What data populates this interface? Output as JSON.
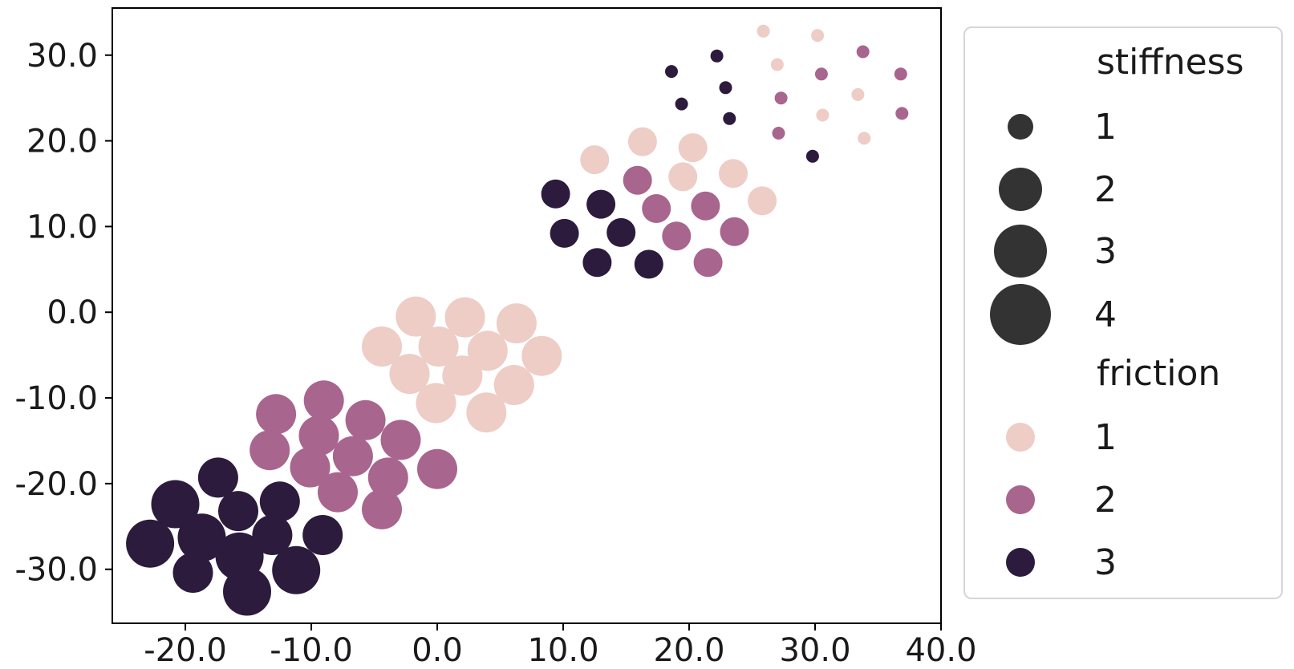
{
  "chart_data": {
    "type": "scatter",
    "title": "",
    "xlabel": "",
    "ylabel": "",
    "xlim": [
      -25.8,
      40
    ],
    "ylim": [
      -36.3,
      35.5
    ],
    "x_ticks": [
      -20,
      -10,
      0,
      10,
      20,
      30,
      40
    ],
    "x_tick_labels": [
      "-20.0",
      "-10.0",
      "0.0",
      "10.0",
      "20.0",
      "30.0",
      "40.0"
    ],
    "y_ticks": [
      30,
      20,
      10,
      0,
      -10,
      -20,
      -30
    ],
    "y_tick_labels": [
      "30.0",
      "20.0",
      "10.0",
      "0.0",
      "-10.0",
      "-20.0",
      "-30.0"
    ],
    "grid": false,
    "legend_position": "outside right",
    "encodings": {
      "size_title": "stiffness",
      "color_title": "friction"
    },
    "size_legend": [
      {
        "label": "1",
        "stiffness": 1
      },
      {
        "label": "2",
        "stiffness": 2
      },
      {
        "label": "3",
        "stiffness": 3
      },
      {
        "label": "4",
        "stiffness": 4
      }
    ],
    "color_legend": [
      {
        "label": "1",
        "friction": 1,
        "color": "#edcdc5"
      },
      {
        "label": "2",
        "friction": 2,
        "color": "#a8658e"
      },
      {
        "label": "3",
        "friction": 3,
        "color": "#2c1b3c"
      }
    ],
    "legend_marker_color": "#333333",
    "points": [
      {
        "x": 25.9,
        "y": 32.8,
        "stiffness": 1,
        "friction": 1
      },
      {
        "x": 30.2,
        "y": 32.3,
        "stiffness": 1,
        "friction": 1
      },
      {
        "x": 33.8,
        "y": 30.4,
        "stiffness": 1,
        "friction": 2
      },
      {
        "x": 22.2,
        "y": 29.9,
        "stiffness": 1,
        "friction": 3
      },
      {
        "x": 27.0,
        "y": 28.9,
        "stiffness": 1,
        "friction": 1
      },
      {
        "x": 18.6,
        "y": 28.1,
        "stiffness": 1,
        "friction": 3
      },
      {
        "x": 30.5,
        "y": 27.8,
        "stiffness": 1,
        "friction": 2
      },
      {
        "x": 36.8,
        "y": 27.8,
        "stiffness": 1,
        "friction": 2
      },
      {
        "x": 22.9,
        "y": 26.2,
        "stiffness": 1,
        "friction": 3
      },
      {
        "x": 33.4,
        "y": 25.4,
        "stiffness": 1,
        "friction": 1
      },
      {
        "x": 27.3,
        "y": 25.0,
        "stiffness": 1,
        "friction": 2
      },
      {
        "x": 19.4,
        "y": 24.3,
        "stiffness": 1,
        "friction": 3
      },
      {
        "x": 36.9,
        "y": 23.2,
        "stiffness": 1,
        "friction": 2
      },
      {
        "x": 30.6,
        "y": 23.0,
        "stiffness": 1,
        "friction": 1
      },
      {
        "x": 23.2,
        "y": 22.6,
        "stiffness": 1,
        "friction": 3
      },
      {
        "x": 27.1,
        "y": 20.9,
        "stiffness": 1,
        "friction": 2
      },
      {
        "x": 33.9,
        "y": 20.3,
        "stiffness": 1,
        "friction": 1
      },
      {
        "x": 29.8,
        "y": 18.2,
        "stiffness": 1,
        "friction": 3
      },
      {
        "x": 16.3,
        "y": 19.9,
        "stiffness": 2,
        "friction": 1
      },
      {
        "x": 20.3,
        "y": 19.2,
        "stiffness": 2,
        "friction": 1
      },
      {
        "x": 12.5,
        "y": 17.8,
        "stiffness": 2,
        "friction": 1
      },
      {
        "x": 23.5,
        "y": 16.2,
        "stiffness": 2,
        "friction": 1
      },
      {
        "x": 19.5,
        "y": 15.8,
        "stiffness": 2,
        "friction": 1
      },
      {
        "x": 15.9,
        "y": 15.4,
        "stiffness": 2,
        "friction": 2
      },
      {
        "x": 9.4,
        "y": 13.8,
        "stiffness": 2,
        "friction": 3
      },
      {
        "x": 25.8,
        "y": 13.0,
        "stiffness": 2,
        "friction": 1
      },
      {
        "x": 13.0,
        "y": 12.6,
        "stiffness": 2,
        "friction": 3
      },
      {
        "x": 21.3,
        "y": 12.4,
        "stiffness": 2,
        "friction": 2
      },
      {
        "x": 17.4,
        "y": 12.1,
        "stiffness": 2,
        "friction": 2
      },
      {
        "x": 10.1,
        "y": 9.2,
        "stiffness": 2,
        "friction": 3
      },
      {
        "x": 14.6,
        "y": 9.3,
        "stiffness": 2,
        "friction": 3
      },
      {
        "x": 23.6,
        "y": 9.4,
        "stiffness": 2,
        "friction": 2
      },
      {
        "x": 19.0,
        "y": 8.9,
        "stiffness": 2,
        "friction": 2
      },
      {
        "x": 12.7,
        "y": 5.8,
        "stiffness": 2,
        "friction": 3
      },
      {
        "x": 16.8,
        "y": 5.6,
        "stiffness": 2,
        "friction": 3
      },
      {
        "x": 21.5,
        "y": 5.8,
        "stiffness": 2,
        "friction": 2
      },
      {
        "x": -1.7,
        "y": -0.5,
        "stiffness": 3,
        "friction": 1
      },
      {
        "x": 2.2,
        "y": -0.6,
        "stiffness": 3,
        "friction": 1
      },
      {
        "x": 6.3,
        "y": -1.3,
        "stiffness": 3,
        "friction": 1
      },
      {
        "x": -4.4,
        "y": -4.0,
        "stiffness": 3,
        "friction": 1
      },
      {
        "x": 0.1,
        "y": -4.0,
        "stiffness": 3,
        "friction": 1
      },
      {
        "x": 4.0,
        "y": -4.5,
        "stiffness": 3,
        "friction": 1
      },
      {
        "x": 8.3,
        "y": -5.1,
        "stiffness": 3,
        "friction": 1
      },
      {
        "x": -2.2,
        "y": -7.2,
        "stiffness": 3,
        "friction": 1
      },
      {
        "x": 2.0,
        "y": -7.4,
        "stiffness": 3,
        "friction": 1
      },
      {
        "x": 6.1,
        "y": -8.5,
        "stiffness": 3,
        "friction": 1
      },
      {
        "x": -0.1,
        "y": -10.6,
        "stiffness": 3,
        "friction": 1
      },
      {
        "x": 3.9,
        "y": -11.7,
        "stiffness": 3,
        "friction": 1
      },
      {
        "x": -9.0,
        "y": -10.3,
        "stiffness": 3,
        "friction": 2
      },
      {
        "x": -12.8,
        "y": -11.9,
        "stiffness": 3,
        "friction": 2
      },
      {
        "x": -5.7,
        "y": -12.6,
        "stiffness": 3,
        "friction": 2
      },
      {
        "x": -9.4,
        "y": -14.4,
        "stiffness": 3,
        "friction": 2
      },
      {
        "x": -2.9,
        "y": -14.9,
        "stiffness": 3,
        "friction": 2
      },
      {
        "x": -13.3,
        "y": -16.1,
        "stiffness": 3,
        "friction": 2
      },
      {
        "x": -6.7,
        "y": -16.8,
        "stiffness": 3,
        "friction": 2
      },
      {
        "x": -10.1,
        "y": -18.1,
        "stiffness": 3,
        "friction": 2
      },
      {
        "x": 0.0,
        "y": -18.3,
        "stiffness": 3,
        "friction": 2
      },
      {
        "x": -3.9,
        "y": -19.3,
        "stiffness": 3,
        "friction": 2
      },
      {
        "x": -7.9,
        "y": -21.0,
        "stiffness": 3,
        "friction": 2
      },
      {
        "x": -4.4,
        "y": -23.0,
        "stiffness": 3,
        "friction": 2
      },
      {
        "x": -17.4,
        "y": -19.3,
        "stiffness": 3,
        "friction": 3
      },
      {
        "x": -20.8,
        "y": -22.4,
        "stiffness": 4,
        "friction": 3
      },
      {
        "x": -15.8,
        "y": -23.2,
        "stiffness": 3,
        "friction": 3
      },
      {
        "x": -12.5,
        "y": -22.1,
        "stiffness": 3,
        "friction": 3
      },
      {
        "x": -18.7,
        "y": -26.3,
        "stiffness": 4,
        "friction": 3
      },
      {
        "x": -13.1,
        "y": -26.0,
        "stiffness": 3,
        "friction": 3
      },
      {
        "x": -9.1,
        "y": -26.0,
        "stiffness": 3,
        "friction": 3
      },
      {
        "x": -22.8,
        "y": -27.0,
        "stiffness": 4,
        "friction": 3
      },
      {
        "x": -15.7,
        "y": -28.5,
        "stiffness": 4,
        "friction": 3
      },
      {
        "x": -19.4,
        "y": -30.4,
        "stiffness": 3,
        "friction": 3
      },
      {
        "x": -11.2,
        "y": -30.1,
        "stiffness": 4,
        "friction": 3
      },
      {
        "x": -15.1,
        "y": -32.6,
        "stiffness": 4,
        "friction": 3
      }
    ]
  }
}
